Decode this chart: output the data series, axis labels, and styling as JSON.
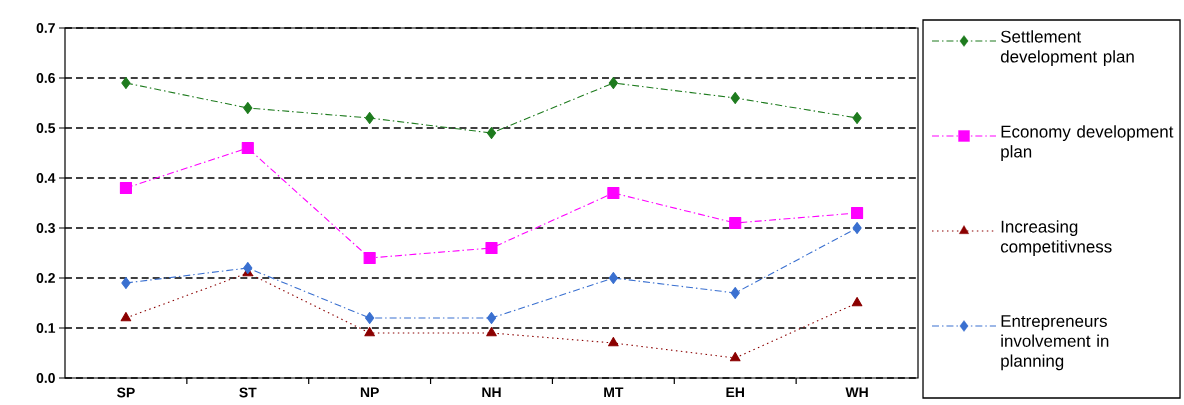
{
  "chart_data": {
    "type": "line",
    "categories": [
      "SP",
      "ST",
      "NP",
      "NH",
      "MT",
      "EH",
      "WH"
    ],
    "series": [
      {
        "name": "Settlement development plan",
        "color": "#1e7b1e",
        "marker": "diamond",
        "line_style": "dashed",
        "values": [
          0.59,
          0.54,
          0.52,
          0.49,
          0.59,
          0.56,
          0.52
        ]
      },
      {
        "name": "Economy development plan",
        "color": "#ff00ff",
        "marker": "square",
        "line_style": "dashed",
        "values": [
          0.38,
          0.46,
          0.24,
          0.26,
          0.37,
          0.31,
          0.33
        ]
      },
      {
        "name": "Increasing competitivness",
        "color": "#8b0000",
        "marker": "triangle",
        "line_style": "dotted",
        "values": [
          0.12,
          0.21,
          0.09,
          0.09,
          0.07,
          0.04,
          0.15
        ]
      },
      {
        "name": "Entrepreneurs involvement in planning",
        "color": "#3a70d0",
        "marker": "diamond",
        "line_style": "dashed",
        "values": [
          0.19,
          0.22,
          0.12,
          0.12,
          0.2,
          0.17,
          0.3
        ]
      }
    ],
    "ylim": [
      0,
      0.7
    ],
    "yticks": [
      {
        "value": 0,
        "label": "0.0"
      },
      0.1,
      0.2,
      0.3,
      0.4,
      0.5,
      0.6,
      0.7
    ],
    "grid": "y",
    "legend": "right"
  }
}
